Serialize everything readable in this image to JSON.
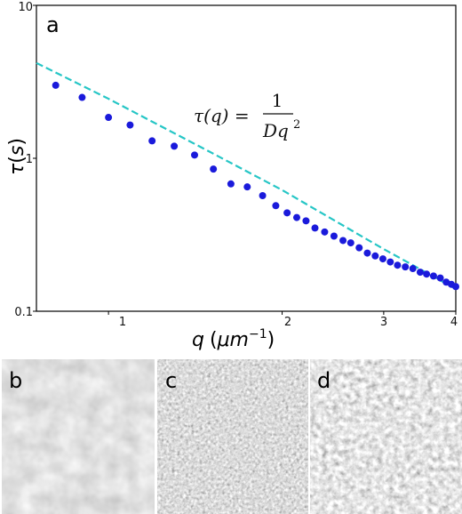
{
  "chart_data": {
    "type": "scatter",
    "panel_label": "a",
    "xlabel": {
      "q": "q",
      "open": "(",
      "unit": "μm",
      "exp": "−1",
      "close": ")"
    },
    "ylabel": {
      "tau": "τ",
      "open": "(",
      "s": "s",
      "close": ")"
    },
    "x_scale": "log",
    "y_scale": "log",
    "xlim": [
      0.75,
      4
    ],
    "ylim": [
      0.1,
      10
    ],
    "x_tick_labels": [
      "1",
      "2",
      "3",
      "4"
    ],
    "y_tick_labels": [
      "0.1",
      "1",
      "10"
    ],
    "equation": {
      "lhs": "τ(q) =",
      "num": "1",
      "den": "Dq",
      "den_exp": "2"
    },
    "fit_line": {
      "color": "#26c6c6",
      "style": "dashed",
      "x": [
        0.75,
        1.0,
        1.5,
        2.0,
        2.5,
        3.0,
        3.5,
        4.0
      ],
      "y": [
        4.2,
        2.45,
        1.1,
        0.62,
        0.38,
        0.255,
        0.185,
        0.14
      ]
    },
    "series": [
      {
        "color": "#1a1adb",
        "marker": "circle",
        "x": [
          0.81,
          0.9,
          1.0,
          1.09,
          1.19,
          1.3,
          1.41,
          1.52,
          1.63,
          1.74,
          1.85,
          1.95,
          2.04,
          2.12,
          2.2,
          2.28,
          2.37,
          2.46,
          2.55,
          2.63,
          2.72,
          2.81,
          2.9,
          2.99,
          3.08,
          3.17,
          3.27,
          3.37,
          3.47,
          3.56,
          3.66,
          3.76,
          3.85,
          3.93,
          4.0
        ],
        "y": [
          3.0,
          2.5,
          1.85,
          1.65,
          1.3,
          1.2,
          1.05,
          0.85,
          0.68,
          0.65,
          0.57,
          0.49,
          0.44,
          0.41,
          0.39,
          0.35,
          0.33,
          0.31,
          0.29,
          0.28,
          0.26,
          0.24,
          0.23,
          0.22,
          0.21,
          0.2,
          0.195,
          0.19,
          0.18,
          0.175,
          0.17,
          0.165,
          0.155,
          0.15,
          0.145
        ]
      }
    ]
  },
  "images": [
    {
      "label": "b"
    },
    {
      "label": "c"
    },
    {
      "label": "d"
    }
  ]
}
